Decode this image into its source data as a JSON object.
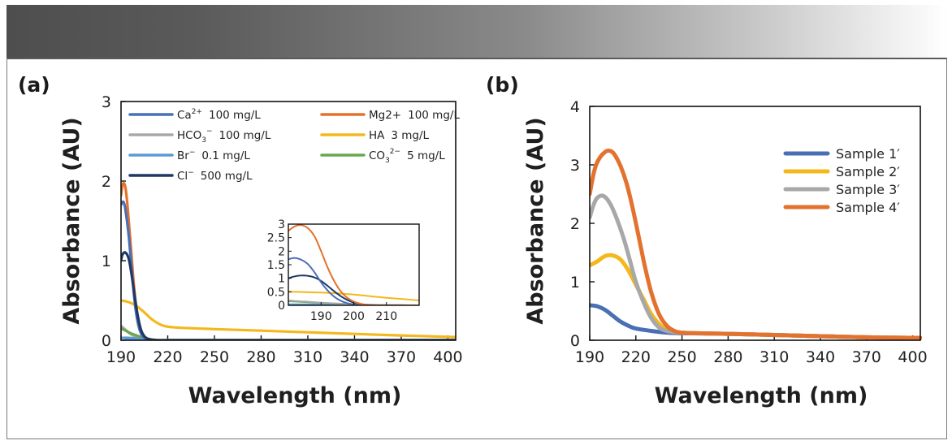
{
  "figure": {
    "banner_colors": {
      "left": "#4e4e4e",
      "right": "#ffffff"
    }
  },
  "chart_data": [
    {
      "panel": "(a)",
      "type": "line",
      "xlabel": "Wavelength (nm)",
      "ylabel": "Absorbance (AU)",
      "xlim": [
        190,
        405
      ],
      "ylim": [
        0,
        3
      ],
      "xticks": [
        190,
        220,
        250,
        280,
        310,
        340,
        370,
        400
      ],
      "yticks": [
        0,
        1,
        2,
        3
      ],
      "legend_position": "top",
      "series": [
        {
          "name": "Ca2+ 100 mg/L",
          "label_main": "Ca",
          "label_sup": "2+",
          "label_sub": "",
          "label_sup2": "",
          "label_rest": "100 mg/L",
          "color": "#4a6fb5",
          "x": [
            190,
            191,
            192,
            193,
            195,
            197,
            199,
            201,
            203,
            205,
            208,
            212,
            220,
            250,
            300,
            350,
            405
          ],
          "y": [
            1.7,
            1.74,
            1.72,
            1.62,
            1.3,
            0.85,
            0.45,
            0.2,
            0.08,
            0.03,
            0.01,
            0.0,
            0.0,
            0.0,
            0.0,
            0.0,
            0.0
          ]
        },
        {
          "name": "Mg2+ 100 mg/L",
          "label_main": "Mg2+",
          "label_sup": "",
          "label_sub": "",
          "label_sup2": "",
          "label_rest": "100 mg/L",
          "color": "#e3722f",
          "x": [
            190,
            191,
            192,
            193,
            194,
            196,
            198,
            200,
            202,
            204,
            206,
            209,
            213,
            220,
            250,
            300,
            405
          ],
          "y": [
            1.82,
            1.95,
            1.97,
            1.9,
            1.72,
            1.25,
            0.75,
            0.38,
            0.16,
            0.06,
            0.02,
            0.005,
            0.0,
            0.0,
            0.0,
            0.0,
            0.0
          ]
        },
        {
          "name": "HCO3- 100 mg/L",
          "label_main": "HCO",
          "label_sup": "",
          "label_sub": "3",
          "label_sup2": "−",
          "label_rest": "100 mg/L",
          "color": "#a8a8a8",
          "x": [
            190,
            193,
            196,
            200,
            205,
            210,
            220,
            300,
            405
          ],
          "y": [
            0.18,
            0.13,
            0.08,
            0.04,
            0.015,
            0.005,
            0.0,
            0.0,
            0.0
          ]
        },
        {
          "name": "HA 3 mg/L",
          "label_main": "HA",
          "label_sup": "",
          "label_sub": "",
          "label_sup2": "",
          "label_rest": "3 mg/L",
          "color": "#f4b81c",
          "x": [
            190,
            193,
            196,
            200,
            205,
            210,
            215,
            220,
            230,
            250,
            280,
            310,
            340,
            370,
            405
          ],
          "y": [
            0.5,
            0.49,
            0.47,
            0.43,
            0.35,
            0.26,
            0.2,
            0.17,
            0.155,
            0.14,
            0.12,
            0.1,
            0.08,
            0.06,
            0.04
          ]
        },
        {
          "name": "Br- 0.1 mg/L",
          "label_main": "Br",
          "label_sup": "−",
          "label_sub": "",
          "label_sup2": "",
          "label_rest": "0.1 mg/L",
          "color": "#5b9bd5",
          "x": [
            190,
            195,
            200,
            205,
            210,
            405
          ],
          "y": [
            0.03,
            0.03,
            0.02,
            0.01,
            0.0,
            0.0
          ]
        },
        {
          "name": "CO3 2- 5 mg/L",
          "label_main": "CO",
          "label_sup": "",
          "label_sub": "3",
          "label_sup2": "2−",
          "label_rest": "5 mg/L",
          "color": "#6aa84f",
          "x": [
            190,
            193,
            196,
            200,
            204,
            208,
            212,
            220,
            405
          ],
          "y": [
            0.15,
            0.12,
            0.09,
            0.06,
            0.035,
            0.015,
            0.005,
            0.0,
            0.0
          ]
        },
        {
          "name": "Cl- 500 mg/L",
          "label_main": "Cl",
          "label_sup": "−",
          "label_sub": "",
          "label_sup2": "",
          "label_rest": "500 mg/L",
          "color": "#1f3864",
          "x": [
            190,
            191,
            193,
            195,
            197,
            199,
            201,
            203,
            205,
            207,
            210,
            215,
            220,
            250,
            300,
            405
          ],
          "y": [
            1.0,
            1.08,
            1.1,
            1.02,
            0.8,
            0.52,
            0.28,
            0.12,
            0.05,
            0.02,
            0.005,
            0.0,
            0.0,
            0.0,
            0.0,
            0.0
          ]
        }
      ],
      "inset": {
        "xlim": [
          180,
          220
        ],
        "ylim": [
          0,
          3
        ],
        "xticks": [
          190,
          200,
          210
        ],
        "yticks": [
          0,
          0.5,
          1,
          1.5,
          2,
          2.5,
          3
        ],
        "ytick_labels": [
          "0",
          "0.5",
          "1",
          "1.5",
          "2",
          "2.5",
          "3"
        ],
        "series": [
          {
            "ref": "Mg2+ 100 mg/L",
            "color": "#e3722f",
            "x": [
              180,
              182,
              184,
              186,
              188,
              190,
              192,
              194,
              196,
              198,
              200,
              202,
              204,
              206,
              210,
              220
            ],
            "y": [
              2.75,
              2.92,
              2.96,
              2.85,
              2.55,
              2.0,
              1.4,
              0.9,
              0.52,
              0.28,
              0.14,
              0.06,
              0.02,
              0.008,
              0.0,
              0.0
            ]
          },
          {
            "ref": "Ca2+ 100 mg/L",
            "color": "#4a6fb5",
            "x": [
              180,
              182,
              184,
              186,
              188,
              190,
              192,
              194,
              196,
              198,
              200,
              202,
              204,
              208,
              220
            ],
            "y": [
              1.7,
              1.75,
              1.68,
              1.52,
              1.22,
              0.85,
              0.55,
              0.32,
              0.17,
              0.08,
              0.035,
              0.015,
              0.005,
              0.0,
              0.0
            ]
          },
          {
            "ref": "Cl- 500 mg/L",
            "color": "#1f3864",
            "x": [
              180,
              182,
              184,
              186,
              188,
              190,
              192,
              194,
              196,
              198,
              200,
              202,
              204,
              206,
              210,
              220
            ],
            "y": [
              1.0,
              1.07,
              1.1,
              1.09,
              1.03,
              0.9,
              0.72,
              0.52,
              0.34,
              0.2,
              0.1,
              0.045,
              0.018,
              0.006,
              0.0,
              0.0
            ]
          },
          {
            "ref": "HA 3 mg/L",
            "color": "#f4b81c",
            "x": [
              180,
              185,
              190,
              195,
              200,
              205,
              210,
              215,
              220
            ],
            "y": [
              0.5,
              0.49,
              0.47,
              0.44,
              0.4,
              0.34,
              0.28,
              0.23,
              0.18
            ]
          },
          {
            "ref": "HCO3- 100 mg/L",
            "color": "#a8a8a8",
            "x": [
              180,
              185,
              190,
              195,
              200,
              205,
              210,
              220
            ],
            "y": [
              0.18,
              0.14,
              0.1,
              0.07,
              0.04,
              0.02,
              0.005,
              0.0
            ]
          },
          {
            "ref": "CO3 2- 5 mg/L",
            "color": "#6aa84f",
            "x": [
              180,
              185,
              190,
              195,
              200,
              205,
              210,
              220
            ],
            "y": [
              0.15,
              0.12,
              0.09,
              0.06,
              0.035,
              0.015,
              0.005,
              0.0
            ]
          },
          {
            "ref": "Br- 0.1 mg/L",
            "color": "#5b9bd5",
            "x": [
              180,
              190,
              200,
              210,
              220
            ],
            "y": [
              0.04,
              0.035,
              0.025,
              0.01,
              0.0
            ]
          }
        ]
      }
    },
    {
      "panel": "(b)",
      "type": "line",
      "xlabel": "Wavelength (nm)",
      "ylabel": "Absorbance (AU)",
      "xlim": [
        190,
        405
      ],
      "ylim": [
        0,
        4
      ],
      "xticks": [
        190,
        220,
        250,
        280,
        310,
        340,
        370,
        400
      ],
      "yticks": [
        0,
        1,
        2,
        3,
        4
      ],
      "legend_position": "top-right",
      "series": [
        {
          "name": "Sample 1′",
          "color": "#4a6fb5",
          "x": [
            190,
            195,
            200,
            205,
            210,
            215,
            220,
            230,
            240,
            250,
            280,
            310,
            340,
            370,
            405
          ],
          "y": [
            0.6,
            0.58,
            0.52,
            0.42,
            0.32,
            0.25,
            0.2,
            0.16,
            0.13,
            0.12,
            0.11,
            0.09,
            0.07,
            0.05,
            0.04
          ]
        },
        {
          "name": "Sample 2′",
          "color": "#f4b81c",
          "x": [
            190,
            195,
            200,
            205,
            210,
            215,
            220,
            225,
            230,
            235,
            240,
            245,
            250,
            260,
            280,
            310,
            340,
            370,
            405
          ],
          "y": [
            1.28,
            1.35,
            1.44,
            1.45,
            1.38,
            1.2,
            0.95,
            0.7,
            0.45,
            0.28,
            0.18,
            0.14,
            0.13,
            0.12,
            0.11,
            0.09,
            0.07,
            0.05,
            0.04
          ]
        },
        {
          "name": "Sample 3′",
          "color": "#a8a8a8",
          "x": [
            190,
            193,
            196,
            200,
            204,
            208,
            212,
            216,
            220,
            225,
            230,
            235,
            240,
            245,
            250,
            260,
            280,
            310,
            340,
            370,
            405
          ],
          "y": [
            2.1,
            2.35,
            2.46,
            2.45,
            2.3,
            2.05,
            1.75,
            1.38,
            1.0,
            0.65,
            0.38,
            0.22,
            0.16,
            0.14,
            0.13,
            0.12,
            0.11,
            0.09,
            0.07,
            0.05,
            0.04
          ]
        },
        {
          "name": "Sample 4′",
          "color": "#e3722f",
          "x": [
            190,
            193,
            196,
            200,
            203,
            206,
            210,
            214,
            218,
            222,
            226,
            230,
            235,
            240,
            245,
            250,
            260,
            280,
            310,
            340,
            370,
            405
          ],
          "y": [
            2.5,
            2.9,
            3.1,
            3.22,
            3.24,
            3.18,
            2.98,
            2.68,
            2.25,
            1.75,
            1.25,
            0.82,
            0.45,
            0.25,
            0.16,
            0.13,
            0.12,
            0.11,
            0.09,
            0.07,
            0.05,
            0.04
          ]
        }
      ]
    }
  ]
}
